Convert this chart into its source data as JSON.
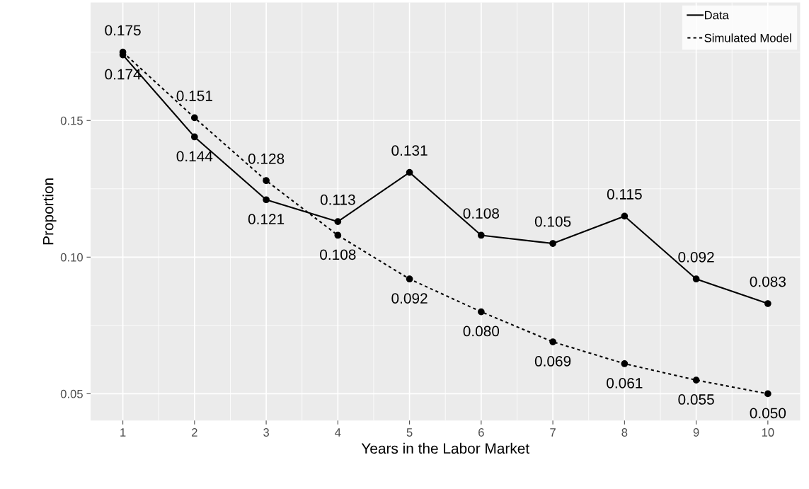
{
  "chart_data": {
    "type": "line",
    "xlabel": "Years in the Labor Market",
    "ylabel": "Proportion",
    "x": [
      1,
      2,
      3,
      4,
      5,
      6,
      7,
      8,
      9,
      10
    ],
    "series": [
      {
        "name": "Data",
        "color": "#000000",
        "line_style": "solid",
        "values": [
          0.174,
          0.144,
          0.121,
          0.113,
          0.131,
          0.108,
          0.105,
          0.115,
          0.092,
          0.083
        ],
        "value_labels": [
          "0.174",
          "0.144",
          "0.121",
          "0.113",
          "0.131",
          "0.108",
          "0.105",
          "0.115",
          "0.092",
          "0.083"
        ]
      },
      {
        "name": "Simulated Model",
        "color": "#000000",
        "line_style": "dotted",
        "values": [
          0.175,
          0.151,
          0.128,
          0.108,
          0.092,
          0.08,
          0.069,
          0.061,
          0.055,
          0.05
        ],
        "value_labels": [
          "0.175",
          "0.151",
          "0.128",
          "0.108",
          "0.092",
          "0.080",
          "0.069",
          "0.061",
          "0.055",
          "0.050"
        ]
      }
    ],
    "xlim": [
      0.55,
      10.45
    ],
    "xticks": [
      1,
      2,
      3,
      4,
      5,
      6,
      7,
      8,
      9,
      10
    ],
    "ylim": [
      0.0402,
      0.1932
    ],
    "yticks": [
      {
        "value": 0.05,
        "label": "0.05"
      },
      {
        "value": 0.1,
        "label": "0.10"
      },
      {
        "value": 0.15,
        "label": "0.15"
      }
    ],
    "marker": "circle",
    "grid": true,
    "legend": "top right"
  }
}
